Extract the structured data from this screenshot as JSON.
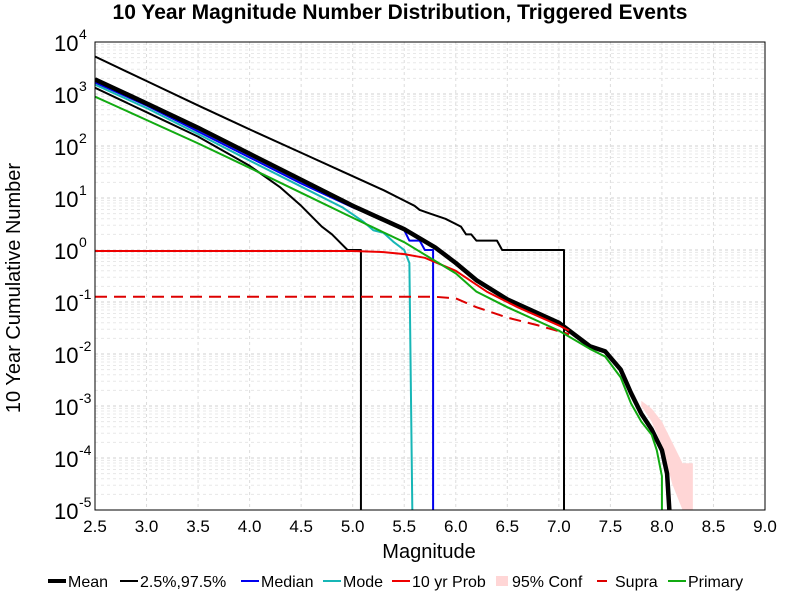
{
  "chart_data": {
    "type": "line",
    "title": "10 Year Magnitude Number Distribution, Triggered Events",
    "xlabel": "Magnitude",
    "ylabel": "10 Year Cumulative Number",
    "xlim": [
      2.5,
      9.0
    ],
    "ylim_log10": [
      -5,
      4
    ],
    "y_scale": "log",
    "grid": true,
    "x_ticks": [
      "2.5",
      "3.0",
      "3.5",
      "4.0",
      "4.5",
      "5.0",
      "5.5",
      "6.0",
      "6.5",
      "7.0",
      "7.5",
      "8.0",
      "8.5",
      "9.0"
    ],
    "y_ticks": [
      {
        "base": "10",
        "exp": "4"
      },
      {
        "base": "10",
        "exp": "3"
      },
      {
        "base": "10",
        "exp": "2"
      },
      {
        "base": "10",
        "exp": "1"
      },
      {
        "base": "10",
        "exp": "0"
      },
      {
        "base": "10",
        "exp": "-1"
      },
      {
        "base": "10",
        "exp": "-2"
      },
      {
        "base": "10",
        "exp": "-3"
      },
      {
        "base": "10",
        "exp": "-4"
      },
      {
        "base": "10",
        "exp": "-5"
      }
    ],
    "legend": {
      "placement": "bottom",
      "entries": [
        {
          "label": "Mean",
          "color": "#000000",
          "style": "thick"
        },
        {
          "label": "2.5%,97.5%",
          "color": "#000000",
          "style": "solid"
        },
        {
          "label": "Median",
          "color": "#0000ee",
          "style": "solid"
        },
        {
          "label": "Mode",
          "color": "#17b6b6",
          "style": "solid"
        },
        {
          "label": "10 yr Prob",
          "color": "#ee0000",
          "style": "solid"
        },
        {
          "label": "95% Conf",
          "color": "#ffd6d6",
          "style": "band"
        },
        {
          "label": "Supra",
          "color": "#dd0000",
          "style": "dashed"
        },
        {
          "label": "Primary",
          "color": "#11aa11",
          "style": "solid"
        }
      ]
    },
    "series": [
      {
        "name": "95% Conf",
        "color": "#ffd6d6",
        "kind": "band",
        "x": [
          7.8,
          7.9,
          8.0,
          8.1,
          8.2,
          8.3
        ],
        "lower": [
          -3.0,
          -3.3,
          -3.75,
          -4.5,
          -5,
          -5
        ],
        "upper": [
          -2.9,
          -3.05,
          -3.3,
          -3.7,
          -4.1,
          -4.1
        ]
      },
      {
        "name": "2.5%",
        "color": "#000000",
        "width": 2,
        "points": [
          [
            2.5,
            3.12
          ],
          [
            3.0,
            2.65
          ],
          [
            3.5,
            2.18
          ],
          [
            4.0,
            1.62
          ],
          [
            4.3,
            1.2
          ],
          [
            4.5,
            0.85
          ],
          [
            4.7,
            0.45
          ],
          [
            4.8,
            0.3
          ],
          [
            4.9,
            0.1
          ],
          [
            4.95,
            0
          ],
          [
            5.08,
            0
          ],
          [
            5.08,
            -5.3
          ]
        ]
      },
      {
        "name": "97.5%",
        "color": "#000000",
        "width": 2,
        "points": [
          [
            2.5,
            3.72
          ],
          [
            3.0,
            3.25
          ],
          [
            3.5,
            2.78
          ],
          [
            4.0,
            2.32
          ],
          [
            4.5,
            1.87
          ],
          [
            5.0,
            1.42
          ],
          [
            5.3,
            1.15
          ],
          [
            5.5,
            0.95
          ],
          [
            5.6,
            0.85
          ],
          [
            5.65,
            0.77
          ],
          [
            5.75,
            0.7
          ],
          [
            5.9,
            0.6
          ],
          [
            6.0,
            0.5
          ],
          [
            6.05,
            0.45
          ],
          [
            6.1,
            0.3
          ],
          [
            6.15,
            0.3
          ],
          [
            6.2,
            0.18
          ],
          [
            6.4,
            0.18
          ],
          [
            6.45,
            0
          ],
          [
            7.05,
            0
          ],
          [
            7.05,
            -5.3
          ]
        ]
      },
      {
        "name": "Median",
        "color": "#0000ee",
        "width": 2,
        "points": [
          [
            2.5,
            3.22
          ],
          [
            3.0,
            2.78
          ],
          [
            3.5,
            2.28
          ],
          [
            4.0,
            1.78
          ],
          [
            4.5,
            1.28
          ],
          [
            5.0,
            0.82
          ],
          [
            5.3,
            0.58
          ],
          [
            5.5,
            0.38
          ],
          [
            5.55,
            0.18
          ],
          [
            5.65,
            0.18
          ],
          [
            5.7,
            0
          ],
          [
            5.78,
            0
          ],
          [
            5.78,
            -5.3
          ]
        ]
      },
      {
        "name": "Mode",
        "color": "#17b6b6",
        "width": 2,
        "points": [
          [
            2.5,
            3.18
          ],
          [
            3.0,
            2.73
          ],
          [
            3.5,
            2.23
          ],
          [
            4.0,
            1.72
          ],
          [
            4.5,
            1.22
          ],
          [
            4.9,
            0.82
          ],
          [
            5.1,
            0.55
          ],
          [
            5.2,
            0.38
          ],
          [
            5.3,
            0.33
          ],
          [
            5.4,
            0.15
          ],
          [
            5.5,
            0.0
          ],
          [
            5.55,
            -0.25
          ],
          [
            5.58,
            -5.3
          ]
        ]
      },
      {
        "name": "Mean",
        "color": "#000000",
        "width": 4.5,
        "points": [
          [
            2.5,
            3.28
          ],
          [
            3.0,
            2.82
          ],
          [
            3.5,
            2.35
          ],
          [
            4.0,
            1.85
          ],
          [
            4.5,
            1.35
          ],
          [
            5.0,
            0.85
          ],
          [
            5.5,
            0.4
          ],
          [
            5.8,
            0.05
          ],
          [
            6.0,
            -0.25
          ],
          [
            6.2,
            -0.58
          ],
          [
            6.5,
            -0.95
          ],
          [
            7.0,
            -1.4
          ],
          [
            7.3,
            -1.85
          ],
          [
            7.45,
            -1.95
          ],
          [
            7.6,
            -2.3
          ],
          [
            7.7,
            -2.75
          ],
          [
            7.8,
            -3.15
          ],
          [
            7.9,
            -3.45
          ],
          [
            8.0,
            -3.85
          ],
          [
            8.05,
            -4.3
          ],
          [
            8.08,
            -5.3
          ]
        ]
      },
      {
        "name": "10 yr Prob",
        "color": "#ee0000",
        "width": 2,
        "points": [
          [
            2.5,
            -0.02
          ],
          [
            5.0,
            -0.02
          ],
          [
            5.3,
            -0.04
          ],
          [
            5.5,
            -0.08
          ],
          [
            5.7,
            -0.15
          ],
          [
            6.0,
            -0.4
          ],
          [
            6.3,
            -0.8
          ],
          [
            6.6,
            -1.1
          ],
          [
            7.0,
            -1.45
          ],
          [
            7.1,
            -1.55
          ]
        ]
      },
      {
        "name": "Supra",
        "color": "#dd0000",
        "width": 2,
        "dash": "12,7",
        "points": [
          [
            2.5,
            -0.9
          ],
          [
            5.8,
            -0.9
          ],
          [
            6.0,
            -0.93
          ],
          [
            6.2,
            -1.1
          ],
          [
            6.5,
            -1.3
          ],
          [
            6.8,
            -1.45
          ],
          [
            7.1,
            -1.62
          ]
        ]
      },
      {
        "name": "Primary",
        "color": "#11aa11",
        "width": 2,
        "points": [
          [
            2.5,
            2.95
          ],
          [
            3.0,
            2.5
          ],
          [
            3.5,
            2.05
          ],
          [
            4.0,
            1.58
          ],
          [
            4.5,
            1.1
          ],
          [
            5.0,
            0.62
          ],
          [
            5.5,
            0.15
          ],
          [
            6.0,
            -0.45
          ],
          [
            6.2,
            -0.8
          ],
          [
            6.5,
            -1.1
          ],
          [
            7.0,
            -1.55
          ],
          [
            7.3,
            -1.9
          ],
          [
            7.45,
            -2.05
          ],
          [
            7.6,
            -2.45
          ],
          [
            7.7,
            -2.95
          ],
          [
            7.8,
            -3.3
          ],
          [
            7.9,
            -3.55
          ],
          [
            7.95,
            -3.85
          ],
          [
            8.0,
            -4.35
          ],
          [
            8.0,
            -5.3
          ]
        ]
      }
    ]
  }
}
